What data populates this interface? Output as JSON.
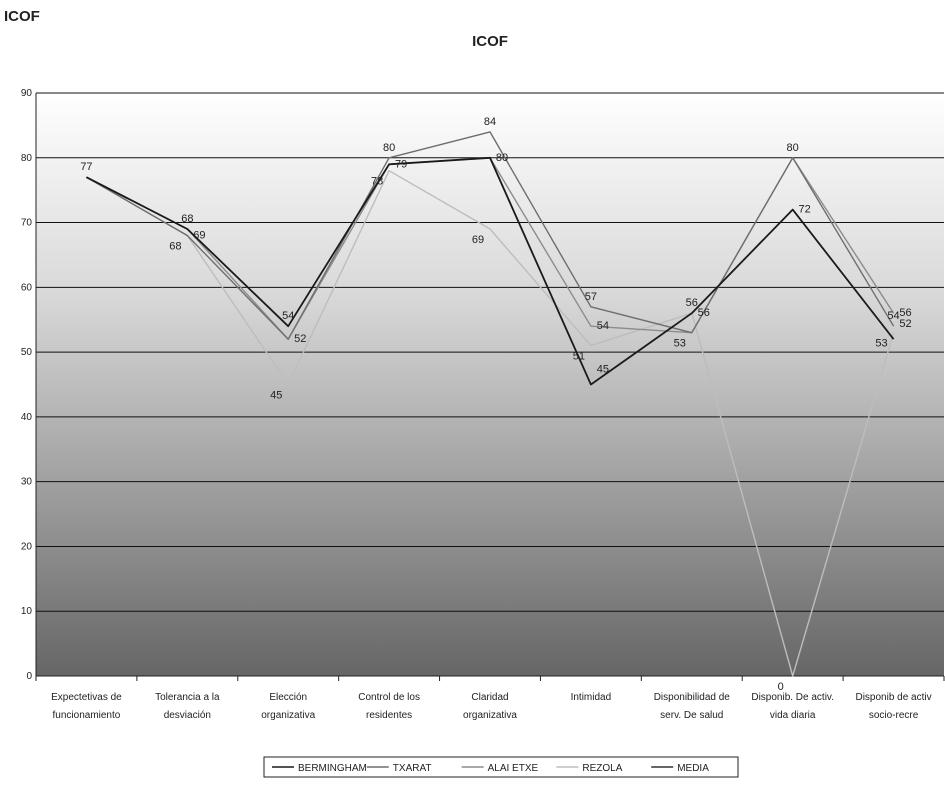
{
  "header": {
    "corner_title": "ICOF"
  },
  "chart_data": {
    "type": "line",
    "title": "ICOF",
    "xlabel": "",
    "ylabel": "",
    "ylim": [
      0,
      90
    ],
    "yticks": [
      0,
      10,
      20,
      30,
      40,
      50,
      60,
      70,
      80,
      90
    ],
    "grid": true,
    "legend_position": "bottom",
    "categories": [
      [
        "Expectetivas de",
        "funcionamiento"
      ],
      [
        "Tolerancia a la",
        "desviación"
      ],
      [
        "Elección",
        "organizativa"
      ],
      [
        "Control de los",
        "residentes"
      ],
      [
        "Claridad",
        "organizativa"
      ],
      [
        "Intimidad",
        ""
      ],
      [
        "Disponibilidad de",
        "serv. De salud"
      ],
      [
        "Disponib. De activ.",
        "vida diaria"
      ],
      [
        "Disponib de activ",
        "socio-recre"
      ]
    ],
    "series": [
      {
        "name": "BERMINGHAM",
        "color": "#1a1a1a",
        "values": [
          77,
          69,
          54,
          79,
          80,
          45,
          56,
          72,
          52
        ]
      },
      {
        "name": "TXARAT",
        "color": "#6e6e6e",
        "values": [
          77,
          68,
          52,
          80,
          84,
          57,
          53,
          80,
          54
        ]
      },
      {
        "name": "ALAI ETXE",
        "color": "#8c8c8c",
        "values": [
          77,
          69,
          52,
          79,
          80,
          54,
          53,
          80,
          56
        ]
      },
      {
        "name": "REZOLA",
        "color": "#bdbdbd",
        "values": [
          77,
          68,
          45,
          78,
          69,
          51,
          56,
          0,
          53
        ]
      },
      {
        "name": "MEDIA",
        "color": "#333333",
        "values": [
          null,
          null,
          null,
          null,
          null,
          null,
          null,
          null,
          null
        ]
      }
    ],
    "data_labels": [
      {
        "text": "77",
        "x": 0,
        "y": 77
      },
      {
        "text": "68",
        "x": 1,
        "y": 69
      },
      {
        "text": "69",
        "x": 1,
        "y": 68
      },
      {
        "text": "68",
        "x": 1,
        "y": 68
      },
      {
        "text": "54",
        "x": 2,
        "y": 54
      },
      {
        "text": "52",
        "x": 2,
        "y": 52
      },
      {
        "text": "45",
        "x": 2,
        "y": 45
      },
      {
        "text": "80",
        "x": 3,
        "y": 80
      },
      {
        "text": "79",
        "x": 3,
        "y": 79
      },
      {
        "text": "78",
        "x": 3,
        "y": 78
      },
      {
        "text": "84",
        "x": 4,
        "y": 84
      },
      {
        "text": "80",
        "x": 4,
        "y": 80
      },
      {
        "text": "69",
        "x": 4,
        "y": 69
      },
      {
        "text": "57",
        "x": 5,
        "y": 57
      },
      {
        "text": "54",
        "x": 5,
        "y": 54
      },
      {
        "text": "51",
        "x": 5,
        "y": 51
      },
      {
        "text": "45",
        "x": 5,
        "y": 45
      },
      {
        "text": "56",
        "x": 6,
        "y": 56
      },
      {
        "text": "56",
        "x": 6,
        "y": 56
      },
      {
        "text": "53",
        "x": 6,
        "y": 53
      },
      {
        "text": "80",
        "x": 7,
        "y": 80
      },
      {
        "text": "72",
        "x": 7,
        "y": 72
      },
      {
        "text": "0",
        "x": 7,
        "y": 0
      },
      {
        "text": "54",
        "x": 8,
        "y": 54
      },
      {
        "text": "56",
        "x": 8,
        "y": 56
      },
      {
        "text": "53",
        "x": 8,
        "y": 53
      },
      {
        "text": "52",
        "x": 8,
        "y": 52
      }
    ]
  }
}
